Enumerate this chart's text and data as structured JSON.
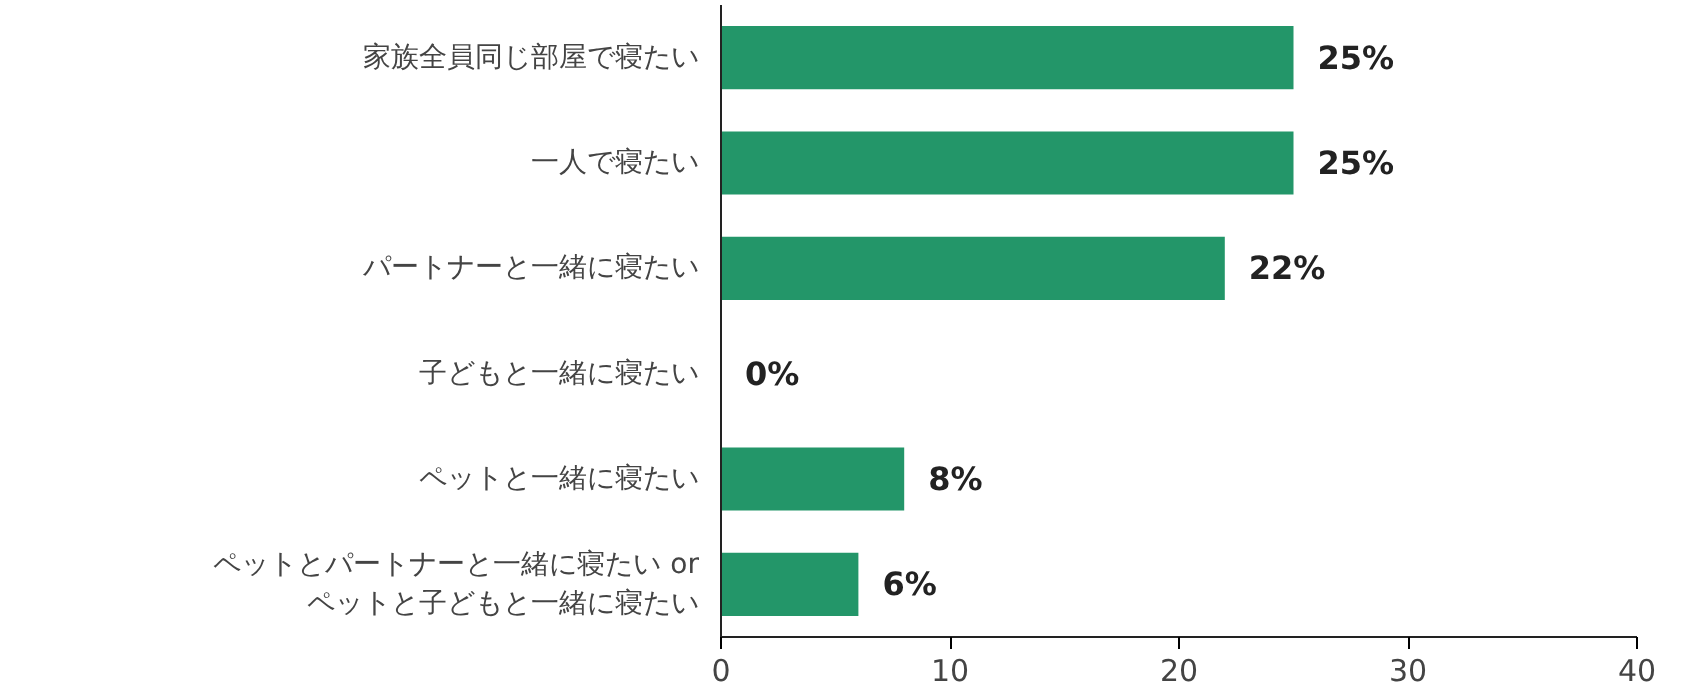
{
  "chart_data": {
    "type": "bar",
    "orientation": "horizontal",
    "categories": [
      "家族全員同じ部屋で寝たい",
      "一人で寝たい",
      "パートナーと一緒に寝たい",
      "子どもと一緒に寝たい",
      "ペットと一緒に寝たい",
      "ペットとパートナーと一緒に寝たい or\nペットと子どもと一緒に寝たい"
    ],
    "values": [
      25,
      25,
      22,
      0,
      8,
      6
    ],
    "value_labels": [
      "25%",
      "25%",
      "22%",
      "0%",
      "8%",
      "6%"
    ],
    "color": "#239669",
    "xlim": [
      0,
      40
    ],
    "xticks": [
      0,
      10,
      20,
      30,
      40
    ],
    "grid": false
  }
}
